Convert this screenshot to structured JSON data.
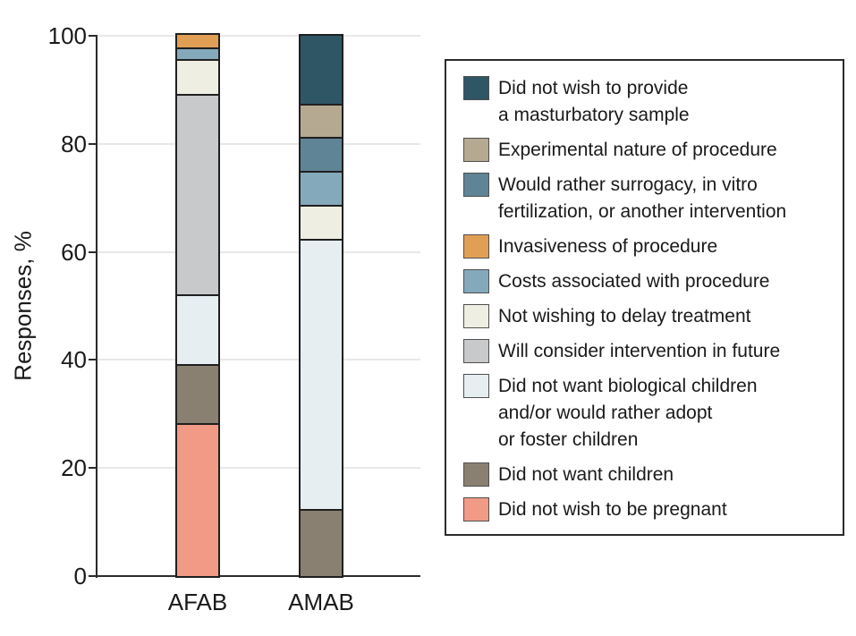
{
  "figure": {
    "background": "#ffffff",
    "axis_color": "#2b2b2b",
    "grid_color": "#e8e8e8",
    "bar_outline_color": "#1f1f1f"
  },
  "chart_data": {
    "type": "stacked-bar",
    "title": "",
    "xlabel": "",
    "ylabel": "Responses, %",
    "ylim": [
      0,
      100
    ],
    "yticks": [
      0,
      20,
      40,
      60,
      80,
      100
    ],
    "grid": true,
    "legend_position": "right",
    "categories": [
      "AFAB",
      "AMAB"
    ],
    "series": [
      {
        "name": "Did not wish to be pregnant",
        "color": "#f19a86",
        "values": [
          28.3,
          0
        ]
      },
      {
        "name": "Did not want children",
        "color": "#8a8071",
        "values": [
          10.9,
          12.5
        ]
      },
      {
        "name": "Did not want biological children and/or would rather adopt or foster children",
        "color": "#e6eef2",
        "values": [
          13.0,
          50.0
        ]
      },
      {
        "name": "Will consider intervention in future",
        "color": "#c7c9ca",
        "values": [
          37.0,
          0
        ]
      },
      {
        "name": "Not wishing to delay treatment",
        "color": "#efeee2",
        "values": [
          6.5,
          6.25
        ]
      },
      {
        "name": "Costs associated with procedure",
        "color": "#84a9bb",
        "values": [
          2.2,
          6.25
        ]
      },
      {
        "name": "Invasiveness of procedure",
        "color": "#e19f55",
        "values": [
          2.2,
          0
        ]
      },
      {
        "name": "Would rather surrogacy, in vitro fertilization, or another intervention",
        "color": "#5f8495",
        "values": [
          0,
          6.25
        ]
      },
      {
        "name": "Experimental nature of procedure",
        "color": "#b5a992",
        "values": [
          0,
          6.25
        ]
      },
      {
        "name": "Did not wish to provide a masturbatory sample",
        "color": "#2e5665",
        "values": [
          0,
          12.5
        ]
      }
    ],
    "legend": [
      {
        "label": "Did not wish to provide\na masturbatory sample",
        "color": "#2e5665"
      },
      {
        "label": "Experimental nature of procedure",
        "color": "#b5a992"
      },
      {
        "label": "Would rather surrogacy, in vitro\nfertilization, or another intervention",
        "color": "#5f8495"
      },
      {
        "label": "Invasiveness of procedure",
        "color": "#e19f55"
      },
      {
        "label": "Costs associated with procedure",
        "color": "#84a9bb"
      },
      {
        "label": "Not wishing to delay treatment",
        "color": "#efeee2"
      },
      {
        "label": "Will consider intervention in future",
        "color": "#c7c9ca"
      },
      {
        "label": "Did not want biological children\nand/or would rather adopt\nor foster children",
        "color": "#e6eef2"
      },
      {
        "label": "Did not want children",
        "color": "#8a8071"
      },
      {
        "label": "Did not wish to be pregnant",
        "color": "#f19a86"
      }
    ]
  }
}
